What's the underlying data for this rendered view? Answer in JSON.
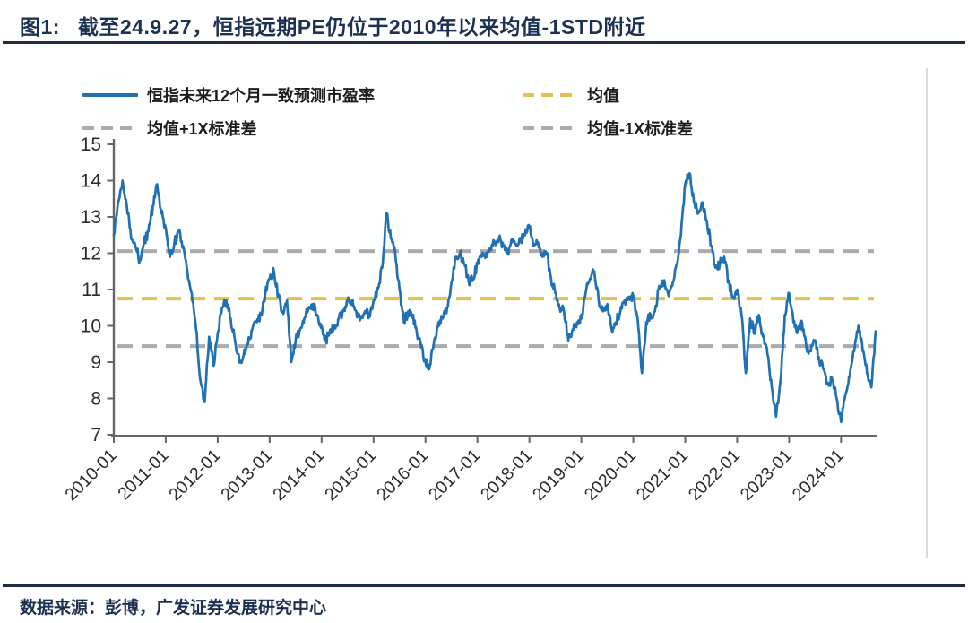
{
  "header": {
    "figure_label": "图1:",
    "title": "截至24.9.27，恒指远期PE仍位于2010年以来均值-1STD附近"
  },
  "footer": {
    "source_note": "数据来源：彭博，广发证券发展研究中心"
  },
  "chart_data": {
    "type": "line",
    "legend_position": "top",
    "grid": false,
    "ylim": [
      7,
      15
    ],
    "y_ticks": [
      15,
      14,
      13,
      12,
      11,
      10,
      9,
      8,
      7
    ],
    "x_tick_labels": [
      "2010-01",
      "2011-01",
      "2012-01",
      "2013-01",
      "2014-01",
      "2015-01",
      "2016-01",
      "2017-01",
      "2018-01",
      "2019-01",
      "2020-01",
      "2021-01",
      "2022-01",
      "2023-01",
      "2024-01"
    ],
    "series": [
      {
        "name": "恒指未来12个月一致预测市盈率",
        "color": "#2070B4",
        "frequency": "monthly",
        "start": "2010-01",
        "end": "2024-09",
        "values": [
          12.5,
          13.4,
          14.0,
          13.3,
          12.4,
          12.2,
          11.8,
          12.3,
          12.6,
          13.3,
          13.9,
          13.1,
          12.7,
          11.9,
          12.3,
          12.6,
          12.2,
          11.5,
          10.9,
          9.9,
          8.5,
          7.9,
          9.7,
          8.9,
          9.8,
          10.5,
          10.7,
          10.2,
          9.6,
          9.0,
          9.2,
          9.5,
          9.9,
          10.1,
          10.3,
          10.9,
          11.3,
          11.5,
          10.8,
          10.4,
          10.7,
          9.0,
          9.6,
          9.9,
          10.2,
          10.5,
          10.6,
          10.3,
          10.0,
          9.6,
          9.9,
          10.0,
          10.2,
          10.4,
          10.7,
          10.7,
          10.4,
          10.2,
          10.4,
          10.3,
          10.7,
          11.0,
          11.6,
          13.1,
          12.4,
          12.0,
          11.0,
          10.1,
          10.4,
          10.3,
          9.8,
          9.4,
          9.0,
          8.9,
          9.6,
          10.1,
          10.2,
          10.5,
          11.2,
          11.9,
          12.0,
          11.7,
          11.2,
          11.3,
          11.7,
          11.9,
          12.0,
          12.1,
          12.3,
          12.4,
          12.2,
          12.0,
          12.3,
          12.2,
          12.4,
          12.5,
          12.7,
          12.2,
          12.3,
          11.9,
          12.0,
          11.3,
          10.9,
          10.5,
          10.4,
          9.6,
          9.9,
          10.1,
          10.2,
          10.9,
          11.3,
          11.5,
          10.7,
          10.4,
          10.6,
          9.9,
          10.1,
          10.4,
          10.7,
          10.8,
          10.8,
          10.2,
          8.7,
          10.1,
          10.3,
          10.4,
          11.1,
          11.2,
          10.9,
          11.1,
          11.7,
          12.5,
          13.9,
          14.2,
          13.4,
          13.1,
          13.4,
          12.9,
          12.2,
          11.6,
          11.7,
          11.9,
          11.2,
          10.8,
          11.0,
          10.3,
          8.7,
          10.2,
          9.8,
          10.3,
          9.7,
          9.2,
          8.3,
          7.5,
          8.5,
          10.3,
          10.9,
          10.1,
          9.9,
          10.1,
          9.4,
          9.3,
          9.6,
          9.0,
          8.8,
          8.4,
          8.5,
          8.0,
          7.35,
          8.1,
          8.6,
          9.3,
          10.0,
          9.3,
          8.7,
          8.3,
          9.85
        ]
      }
    ],
    "reference_lines": [
      {
        "name": "均值",
        "value": 10.75,
        "color": "#E4C04C",
        "style": "dashed"
      },
      {
        "name": "均值+1X标准差",
        "value": 12.06,
        "color": "#ABABAB",
        "style": "dashed"
      },
      {
        "name": "均值-1X标准差",
        "value": 9.44,
        "color": "#ABABAB",
        "style": "dashed"
      }
    ]
  }
}
